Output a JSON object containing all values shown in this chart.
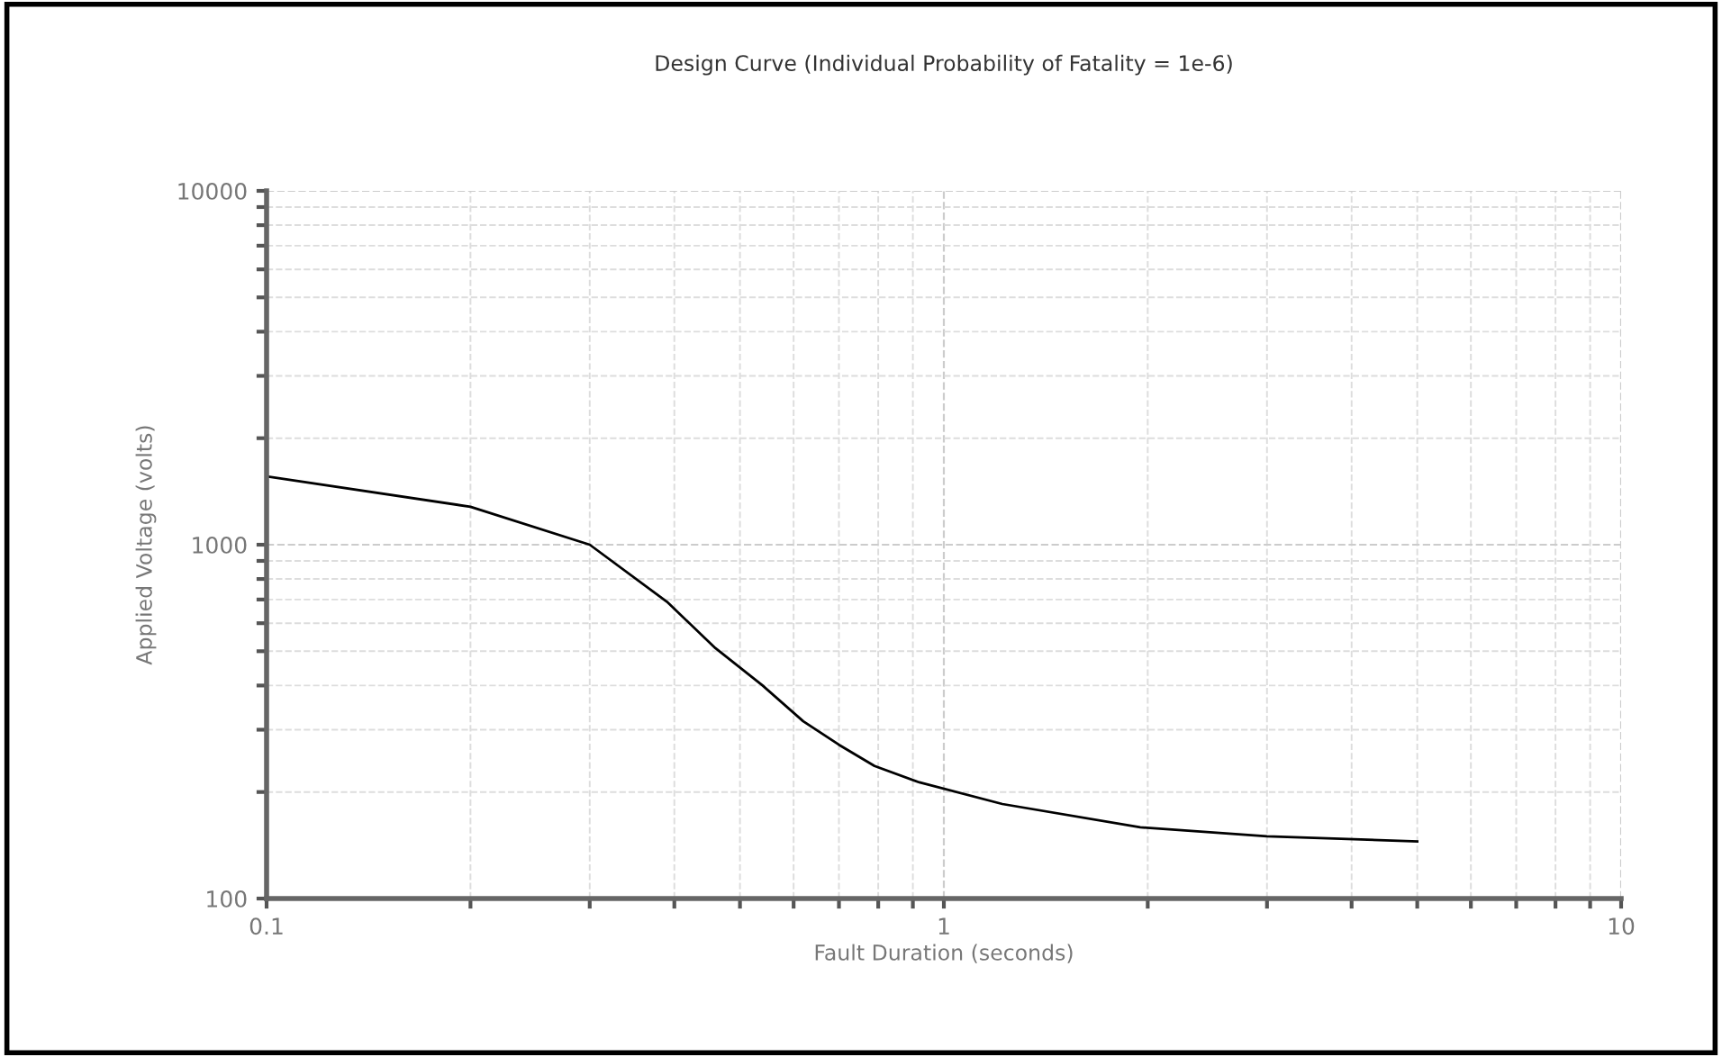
{
  "chart_data": {
    "type": "line",
    "title": "Design Curve (Individual Probability of Fatality = 1e-6)",
    "xlabel": "Fault Duration (seconds)",
    "ylabel": "Applied Voltage (volts)",
    "log": "xy",
    "grid": true,
    "xlim": [
      0.1,
      10
    ],
    "ylim": [
      100,
      10000
    ],
    "xticks": [
      0.1,
      1,
      10
    ],
    "yticks": [
      100,
      1000,
      10000
    ],
    "series": [
      {
        "color": "#000000",
        "x": [
          0.1,
          0.2,
          0.3,
          0.39,
          0.46,
          0.54,
          0.62,
          0.7,
          0.79,
          0.92,
          1.22,
          1.95,
          3.0,
          5.0
        ],
        "values": [
          1560,
          1280,
          1000,
          690,
          510,
          400,
          317,
          272,
          237,
          213,
          185,
          159,
          150,
          145
        ]
      }
    ]
  }
}
